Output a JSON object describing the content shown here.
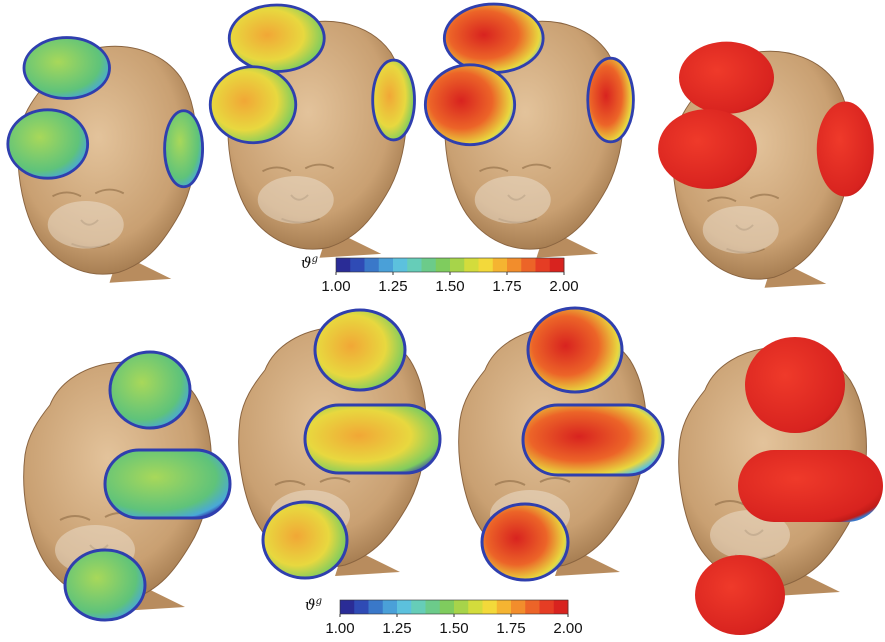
{
  "colorbars": [
    {
      "symbol": "ϑ",
      "superscript": "g",
      "lim": [
        1.0,
        2.0
      ],
      "ticks": [
        {
          "value": 1.0,
          "label": "1.00"
        },
        {
          "value": 1.25,
          "label": "1.25"
        },
        {
          "value": 1.5,
          "label": "1.50"
        },
        {
          "value": 1.75,
          "label": "1.75"
        },
        {
          "value": 2.0,
          "label": "2.00"
        }
      ],
      "colors": [
        "#2a2c96",
        "#2f4bb5",
        "#3a78c9",
        "#4aa0d8",
        "#5cc1dd",
        "#66cdb8",
        "#6ccb8a",
        "#7fcc5e",
        "#a7d44a",
        "#d3dc3c",
        "#f3d93a",
        "#f5b431",
        "#f28d2c",
        "#ec6428",
        "#e53d24",
        "#d8231f"
      ]
    },
    {
      "symbol": "ϑ",
      "superscript": "g",
      "lim": [
        1.0,
        2.0
      ],
      "ticks": [
        {
          "value": 1.0,
          "label": "1.00"
        },
        {
          "value": 1.25,
          "label": "1.25"
        },
        {
          "value": 1.5,
          "label": "1.50"
        },
        {
          "value": 1.75,
          "label": "1.75"
        },
        {
          "value": 2.0,
          "label": "2.00"
        }
      ],
      "colors": [
        "#2a2c96",
        "#2f4bb5",
        "#3a78c9",
        "#4aa0d8",
        "#5cc1dd",
        "#66cdb8",
        "#6ccb8a",
        "#7fcc5e",
        "#a7d44a",
        "#d3dc3c",
        "#f3d93a",
        "#f5b431",
        "#f28d2c",
        "#ec6428",
        "#e53d24",
        "#d8231f"
      ]
    }
  ]
}
